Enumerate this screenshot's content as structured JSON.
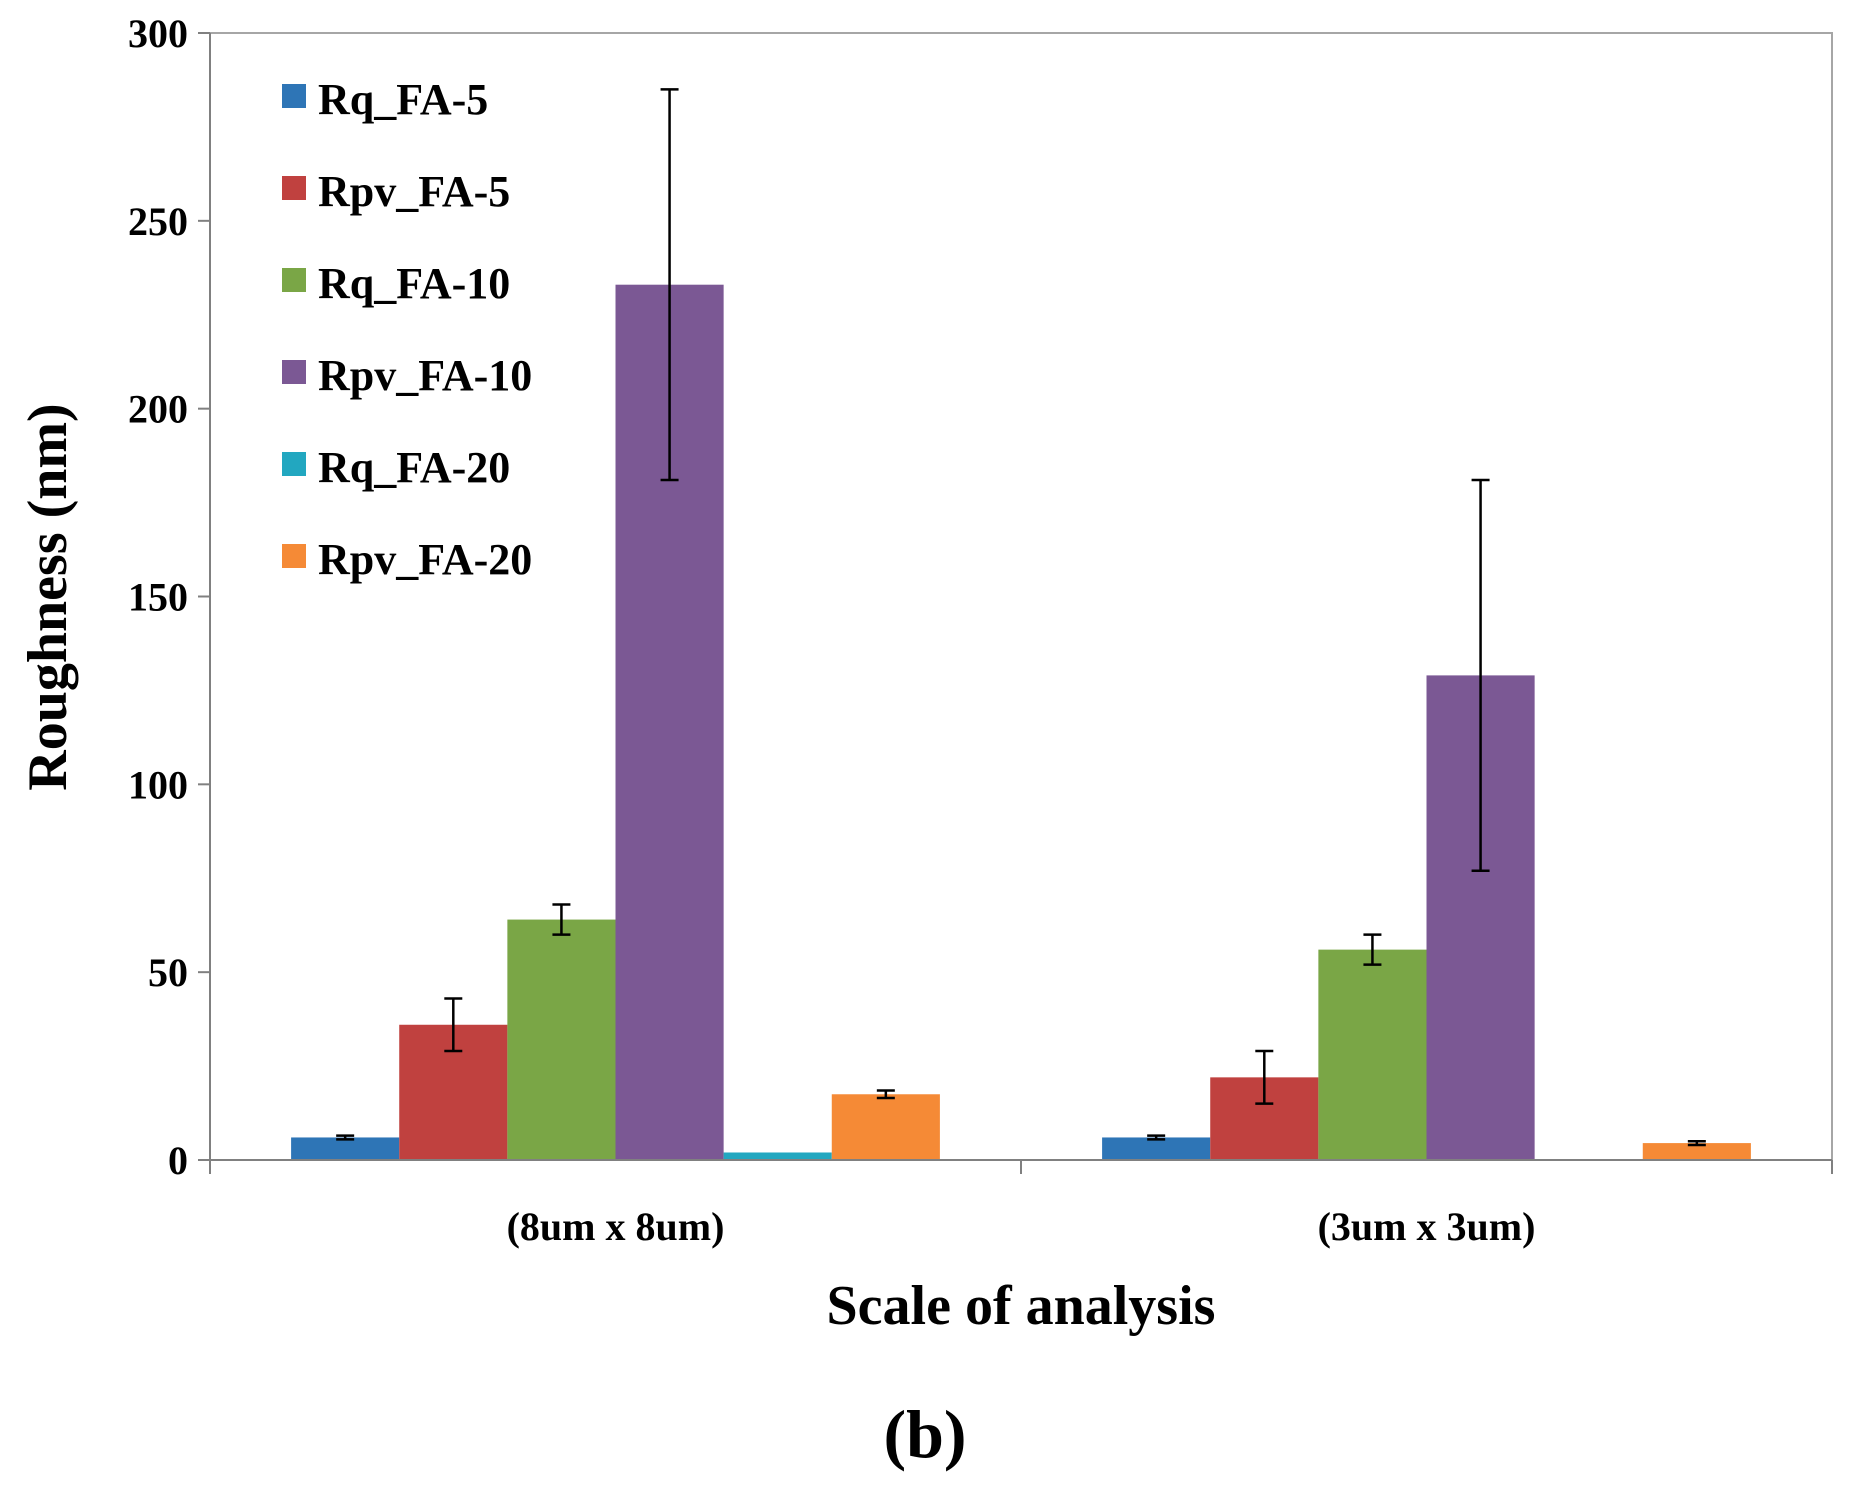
{
  "caption": "(b)",
  "chart_data": {
    "type": "bar",
    "title": "",
    "xlabel": "Scale of analysis",
    "ylabel": "Roughness (nm)",
    "ylim": [
      0,
      300
    ],
    "yticks": [
      0,
      50,
      100,
      150,
      200,
      250,
      300
    ],
    "grid": false,
    "legend_position": "top-left",
    "categories": [
      "(8um x 8um)",
      "(3um x 3um)"
    ],
    "series": [
      {
        "name": "Rq_FA-5",
        "color": "#2e75b6",
        "values": [
          6,
          6
        ],
        "errors": [
          0.5,
          0.5
        ]
      },
      {
        "name": "Rpv_FA-5",
        "color": "#c0413f",
        "values": [
          36,
          22
        ],
        "errors": [
          7,
          7
        ]
      },
      {
        "name": "Rq_FA-10",
        "color": "#7aa646",
        "values": [
          64,
          56
        ],
        "errors": [
          4,
          4
        ]
      },
      {
        "name": "Rpv_FA-10",
        "color": "#7b5894",
        "values": [
          233,
          129
        ],
        "errors": [
          52,
          52
        ]
      },
      {
        "name": "Rq_FA-20",
        "color": "#22a7c0",
        "values": [
          2,
          0
        ],
        "errors": [
          0,
          0
        ]
      },
      {
        "name": "Rpv_FA-20",
        "color": "#f58a36",
        "values": [
          17.5,
          4.5
        ],
        "errors": [
          1,
          0.5
        ]
      }
    ]
  }
}
